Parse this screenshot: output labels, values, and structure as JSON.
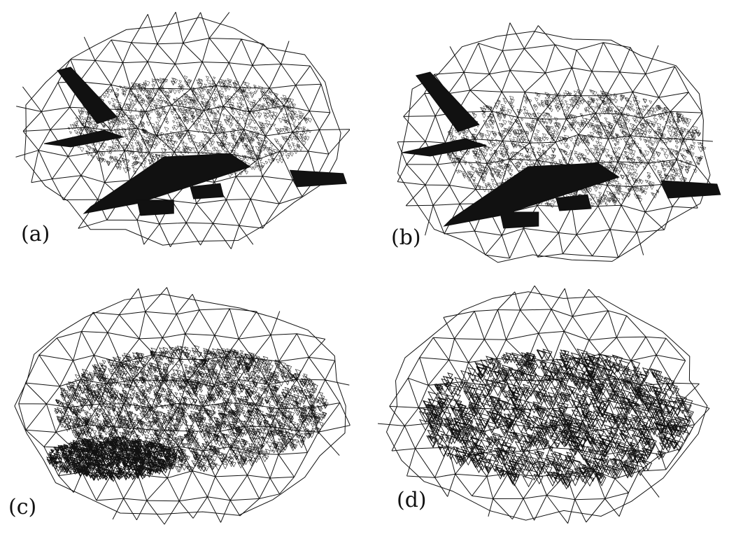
{
  "figure": {
    "panels": [
      {
        "id": "a",
        "label": "(a)",
        "stage": 0
      },
      {
        "id": "b",
        "label": "(b)",
        "stage": 1
      },
      {
        "id": "c",
        "label": "(c)",
        "stage": 2
      },
      {
        "id": "d",
        "label": "(d)",
        "stage": 3
      }
    ],
    "colors": {
      "ink": "#111111",
      "background": "#ffffff"
    }
  }
}
